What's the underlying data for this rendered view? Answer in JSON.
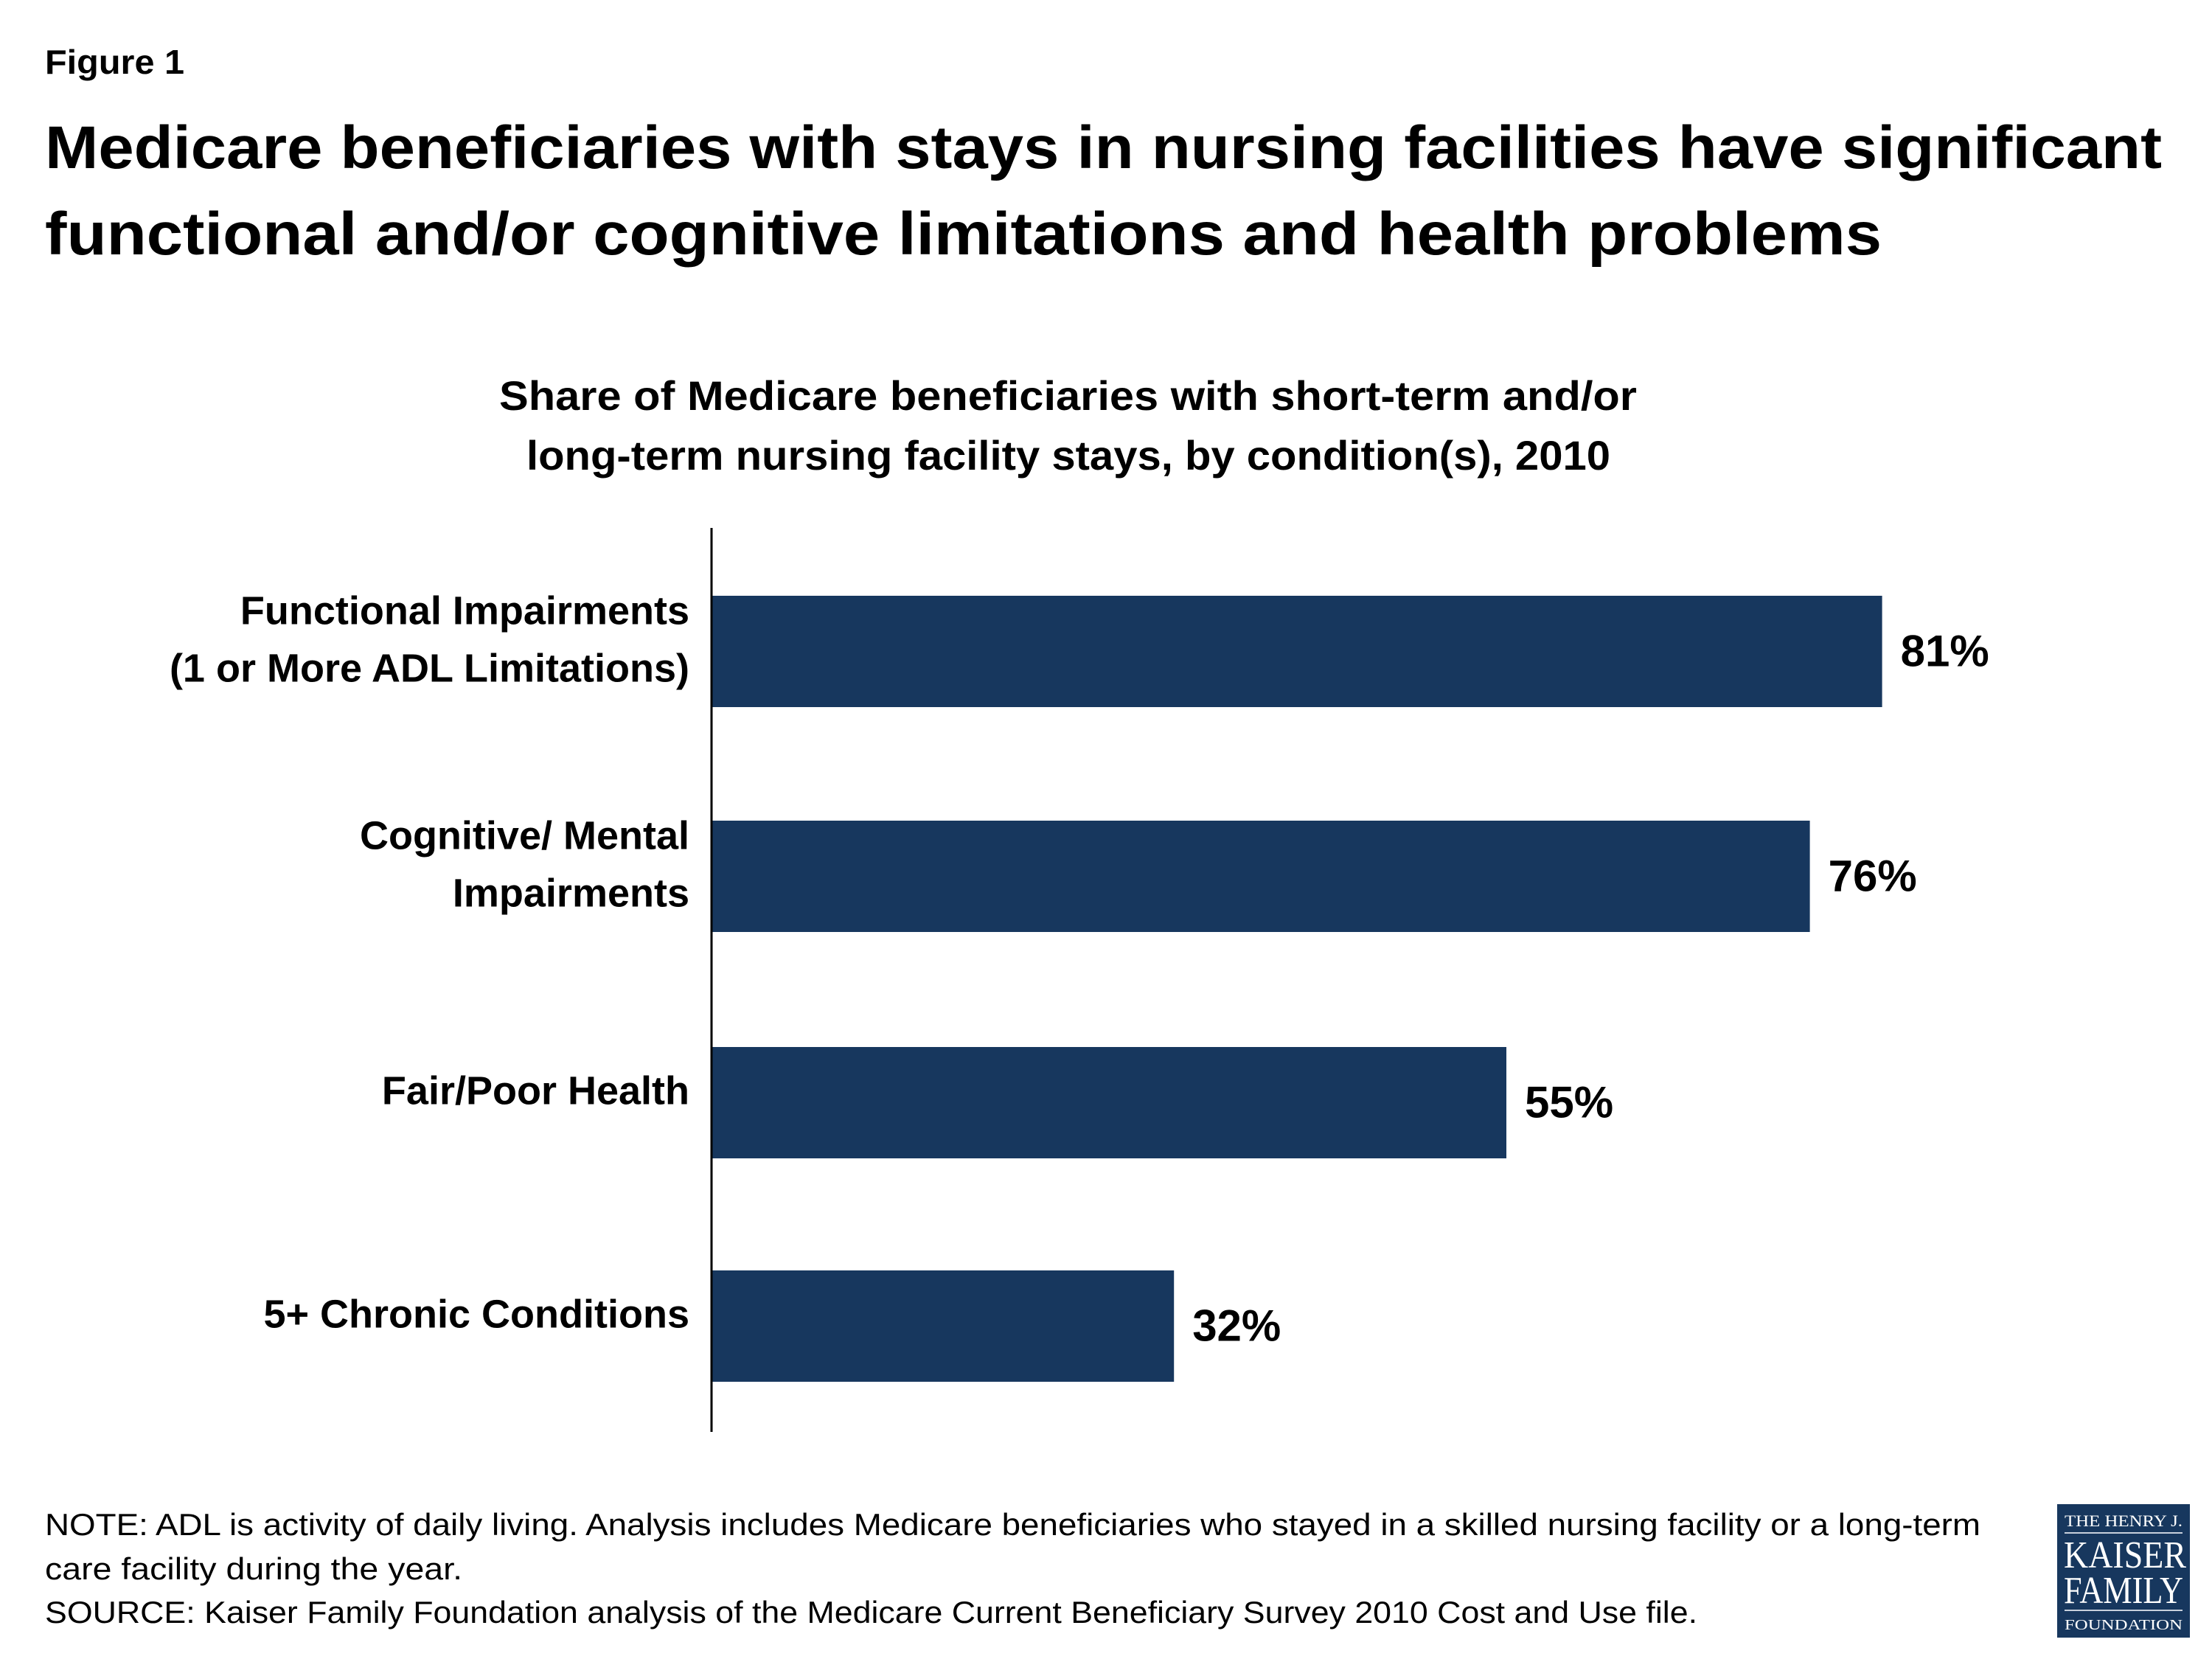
{
  "figure_label": "Figure 1",
  "title_lines": [
    "Medicare beneficiaries with stays in nursing facilities have significant",
    "functional and/or cognitive limitations and health problems"
  ],
  "chart_data": {
    "type": "bar",
    "orientation": "horizontal",
    "title_lines": [
      "Share of Medicare beneficiaries with short-term and/or",
      "long-term nursing facility stays, by condition(s), 2010"
    ],
    "categories": [
      [
        "Functional Impairments",
        "(1 or More ADL Limitations)"
      ],
      [
        "Cognitive/ Mental",
        "Impairments"
      ],
      [
        "Fair/Poor Health"
      ],
      [
        "5+ Chronic Conditions"
      ]
    ],
    "values": [
      81,
      76,
      55,
      32
    ],
    "data_labels": [
      "81%",
      "76%",
      "55%",
      "32%"
    ],
    "unit": "%",
    "xlim": [
      0,
      100
    ],
    "grid": false,
    "bar_color": "#17375e"
  },
  "notes": [
    "NOTE: ADL is activity of daily living. Analysis includes Medicare beneficiaries who stayed in a skilled nursing facility or a long-term",
    "care facility during the year.",
    "SOURCE: Kaiser Family Foundation analysis of the Medicare Current Beneficiary Survey 2010 Cost and Use file."
  ],
  "logo": {
    "lines": [
      "THE HENRY J.",
      "KAISER",
      "FAMILY",
      "FOUNDATION"
    ],
    "color": "#17375e"
  }
}
